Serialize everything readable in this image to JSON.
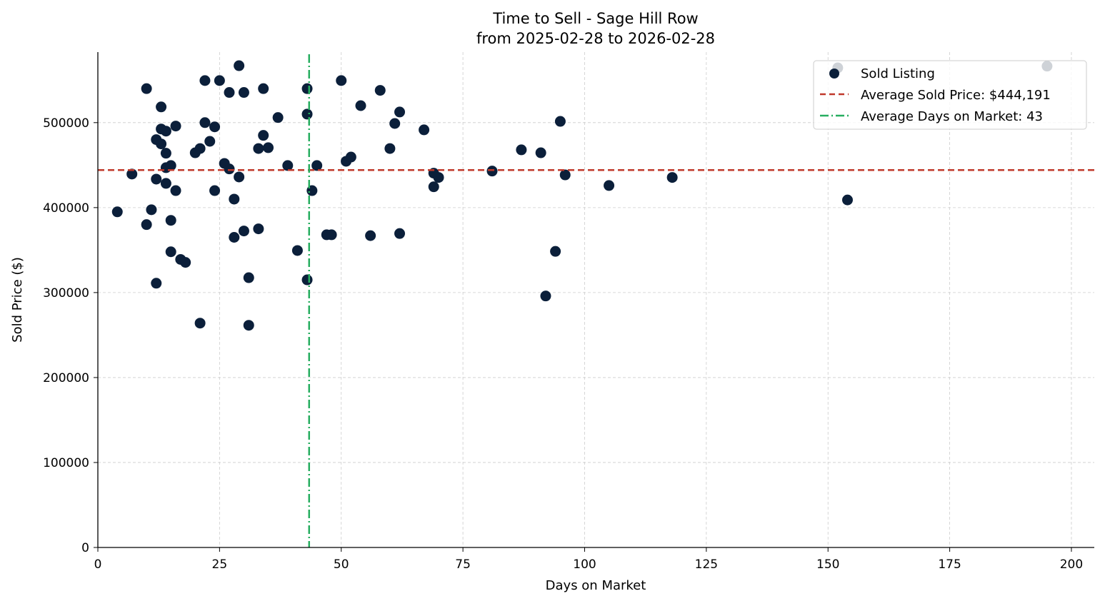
{
  "chart_data": {
    "type": "scatter",
    "title": "Time to Sell - Sage Hill Row",
    "subtitle": "from 2025-02-28 to 2026-02-28",
    "xlabel": "Days on Market",
    "ylabel": "Sold Price ($)",
    "xlim": [
      0,
      204.7
    ],
    "ylim": [
      0,
      583000
    ],
    "xticks": [
      0,
      25,
      50,
      75,
      100,
      125,
      150,
      175,
      200
    ],
    "yticks": [
      0,
      100000,
      200000,
      300000,
      400000,
      500000
    ],
    "grid": true,
    "legend_position": "top-right",
    "colors": {
      "points": "#0b1f3a",
      "avg_price": "#c0392b",
      "avg_days": "#27ae60"
    },
    "series": [
      {
        "name": "Sold Listing",
        "points": [
          [
            4,
            395000
          ],
          [
            7,
            439500
          ],
          [
            10,
            540000
          ],
          [
            10,
            380000
          ],
          [
            11,
            397500
          ],
          [
            12,
            480000
          ],
          [
            12,
            433500
          ],
          [
            12,
            311000
          ],
          [
            13,
            518500
          ],
          [
            13,
            492500
          ],
          [
            13,
            475000
          ],
          [
            14,
            490000
          ],
          [
            14,
            464000
          ],
          [
            14,
            447000
          ],
          [
            14,
            428500
          ],
          [
            15,
            449500
          ],
          [
            15,
            385000
          ],
          [
            15,
            348000
          ],
          [
            16,
            496000
          ],
          [
            16,
            420000
          ],
          [
            17,
            339000
          ],
          [
            18,
            335500
          ],
          [
            20,
            464500
          ],
          [
            21,
            469500
          ],
          [
            21,
            264000
          ],
          [
            22,
            549500
          ],
          [
            22,
            500000
          ],
          [
            23,
            478000
          ],
          [
            24,
            495000
          ],
          [
            24,
            420000
          ],
          [
            25,
            549500
          ],
          [
            26,
            452000
          ],
          [
            27,
            535500
          ],
          [
            27,
            445500
          ],
          [
            28,
            410000
          ],
          [
            28,
            365000
          ],
          [
            29,
            567000
          ],
          [
            29,
            436000
          ],
          [
            30,
            535500
          ],
          [
            30,
            372500
          ],
          [
            31,
            317500
          ],
          [
            31,
            261500
          ],
          [
            33,
            469500
          ],
          [
            33,
            375000
          ],
          [
            34,
            540000
          ],
          [
            34,
            485000
          ],
          [
            35,
            470500
          ],
          [
            37,
            506000
          ],
          [
            39,
            449500
          ],
          [
            41,
            349500
          ],
          [
            43,
            540000
          ],
          [
            43,
            510000
          ],
          [
            43,
            315000
          ],
          [
            44,
            420000
          ],
          [
            45,
            449500
          ],
          [
            47,
            368000
          ],
          [
            48,
            368000
          ],
          [
            50,
            549500
          ],
          [
            51,
            454500
          ],
          [
            52,
            459500
          ],
          [
            54,
            520000
          ],
          [
            56,
            367000
          ],
          [
            58,
            538000
          ],
          [
            60,
            469500
          ],
          [
            61,
            499000
          ],
          [
            62,
            512500
          ],
          [
            62,
            369500
          ],
          [
            67,
            491500
          ],
          [
            69,
            440500
          ],
          [
            69,
            424500
          ],
          [
            70,
            435500
          ],
          [
            81,
            443000
          ],
          [
            87,
            468000
          ],
          [
            91,
            464500
          ],
          [
            92,
            296000
          ],
          [
            94,
            348500
          ],
          [
            95,
            501500
          ],
          [
            96,
            438500
          ],
          [
            105,
            426000
          ],
          [
            118,
            435500
          ],
          [
            152,
            564500
          ],
          [
            154,
            409000
          ],
          [
            195,
            566500
          ]
        ]
      }
    ],
    "reference_lines": [
      {
        "name": "Average Sold Price: $444,191",
        "axis": "y",
        "value": 444191,
        "style": "dashed"
      },
      {
        "name": "Average Days on Market: 43",
        "axis": "x",
        "value": 43.4,
        "style": "dashdot"
      }
    ]
  }
}
